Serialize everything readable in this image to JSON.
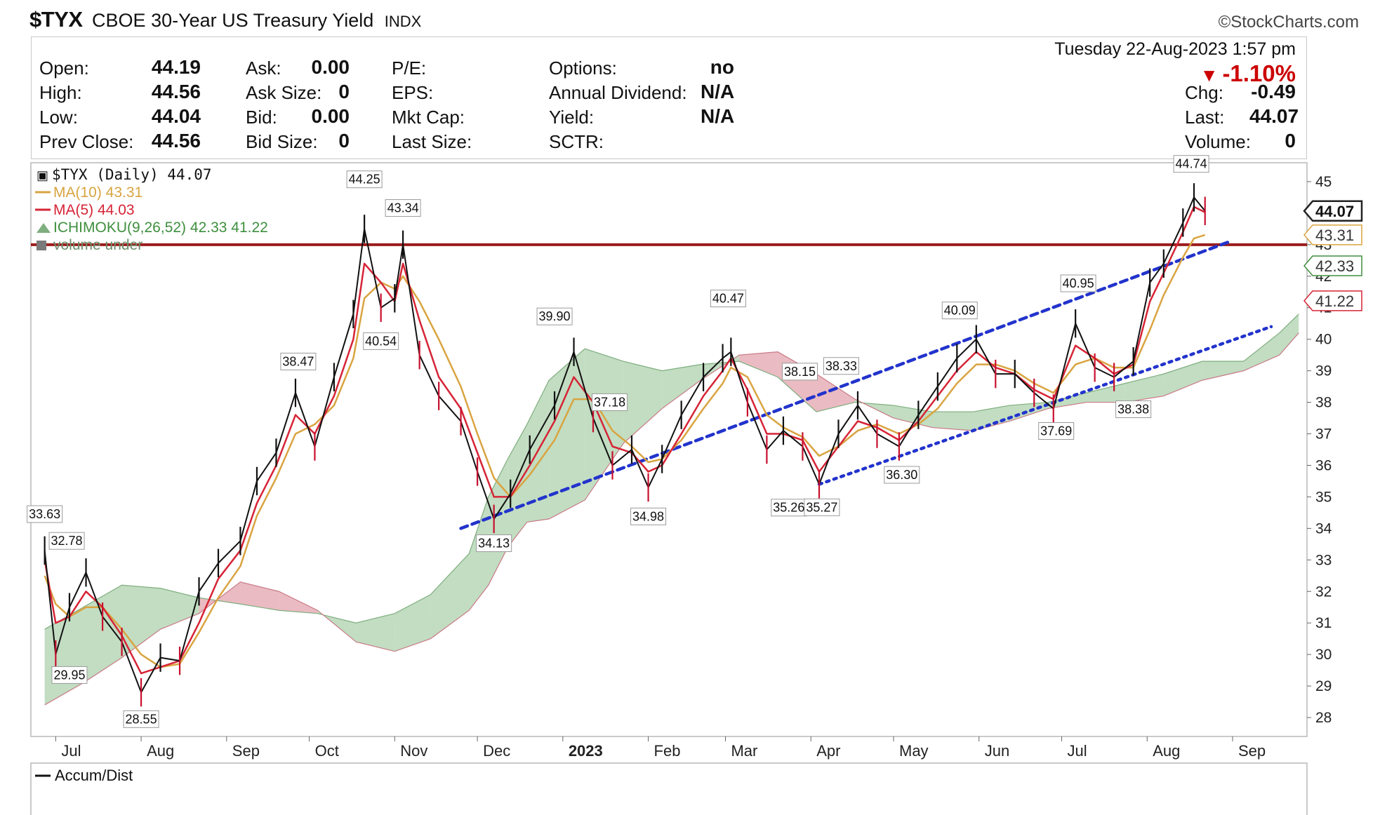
{
  "header": {
    "symbol": "$TYX",
    "name": "CBOE 30-Year US Treasury Yield",
    "exchange": "INDX",
    "brand": "©StockCharts.com"
  },
  "quote": {
    "date": "Tuesday  22-Aug-2023  1:57 pm",
    "change_pct": "-1.10%",
    "fields": [
      {
        "label": "Open:",
        "value": "44.19"
      },
      {
        "label": "High:",
        "value": "44.56"
      },
      {
        "label": "Low:",
        "value": "44.04"
      },
      {
        "label": "Prev Close:",
        "value": "44.56"
      },
      {
        "label": "Ask:",
        "value": "0.00"
      },
      {
        "label": "Ask Size:",
        "value": "0"
      },
      {
        "label": "Bid:",
        "value": "0.00"
      },
      {
        "label": "Bid Size:",
        "value": "0"
      },
      {
        "label": "P/E:",
        "value": ""
      },
      {
        "label": "EPS:",
        "value": ""
      },
      {
        "label": "Mkt Cap:",
        "value": ""
      },
      {
        "label": "Last Size:",
        "value": ""
      },
      {
        "label": "Options:",
        "value": "no"
      },
      {
        "label": "Annual Dividend:",
        "value": "N/A"
      },
      {
        "label": "Yield:",
        "value": "N/A"
      },
      {
        "label": "SCTR:",
        "value": ""
      },
      {
        "label": "Chg:",
        "value": "-0.49"
      },
      {
        "label": "Last:",
        "value": "44.07"
      },
      {
        "label": "Volume:",
        "value": "0"
      }
    ]
  },
  "chart_data": [
    {
      "type": "line",
      "title": "$TYX (Daily) 44.07",
      "legend": [
        {
          "label": "$TYX (Daily) 44.07",
          "color": "#111111"
        },
        {
          "label": "MA(10) 43.31",
          "color": "#d9a441"
        },
        {
          "label": "MA(5) 44.03",
          "color": "#d62436"
        },
        {
          "label": "ICHIMOKU(9,26,52) 42.33 41.22",
          "color": "#3f8f3f"
        },
        {
          "label": "volume under",
          "color": "#6a8f6a"
        }
      ],
      "legend_position": "top-left",
      "xlabels": [
        "Jul",
        "Aug",
        "Sep",
        "Oct",
        "Nov",
        "Dec",
        "2023",
        "Feb",
        "Mar",
        "Apr",
        "May",
        "Jun",
        "Jul",
        "Aug",
        "Sep"
      ],
      "yticks": [
        28,
        29,
        30,
        31,
        32,
        33,
        34,
        35,
        36,
        37,
        38,
        39,
        40,
        41,
        42,
        43,
        45
      ],
      "ylim": [
        27.4,
        45.6
      ],
      "y_axis_side": "right",
      "grid": false,
      "price_x": [
        "2022-06-27",
        "2022-07-01",
        "2022-07-06",
        "2022-07-12",
        "2022-07-18",
        "2022-07-25",
        "2022-08-01",
        "2022-08-08",
        "2022-08-15",
        "2022-08-22",
        "2022-08-29",
        "2022-09-06",
        "2022-09-12",
        "2022-09-19",
        "2022-09-26",
        "2022-10-03",
        "2022-10-10",
        "2022-10-17",
        "2022-10-21",
        "2022-10-27",
        "2022-11-01",
        "2022-11-04",
        "2022-11-10",
        "2022-11-17",
        "2022-11-25",
        "2022-12-01",
        "2022-12-07",
        "2022-12-13",
        "2022-12-20",
        "2022-12-29",
        "2023-01-05",
        "2023-01-12",
        "2023-01-19",
        "2023-01-26",
        "2023-02-01",
        "2023-02-06",
        "2023-02-13",
        "2023-02-21",
        "2023-02-28",
        "2023-03-03",
        "2023-03-09",
        "2023-03-16",
        "2023-03-22",
        "2023-03-29",
        "2023-04-04",
        "2023-04-11",
        "2023-04-18",
        "2023-04-25",
        "2023-05-03",
        "2023-05-10",
        "2023-05-17",
        "2023-05-24",
        "2023-05-31",
        "2023-06-07",
        "2023-06-14",
        "2023-06-21",
        "2023-06-28",
        "2023-07-06",
        "2023-07-13",
        "2023-07-20",
        "2023-07-27",
        "2023-08-02",
        "2023-08-07",
        "2023-08-14",
        "2023-08-18",
        "2023-08-22"
      ],
      "price_y": [
        33.3,
        30.0,
        31.5,
        32.6,
        31.2,
        30.4,
        28.8,
        29.9,
        29.8,
        32.0,
        32.9,
        33.6,
        35.5,
        36.4,
        38.3,
        36.6,
        38.8,
        40.8,
        43.5,
        41.0,
        41.3,
        43.0,
        39.5,
        38.2,
        37.4,
        35.8,
        34.3,
        35.1,
        36.5,
        37.9,
        39.6,
        37.5,
        36.0,
        36.5,
        35.3,
        36.2,
        37.6,
        38.8,
        39.4,
        39.6,
        38.0,
        36.5,
        37.1,
        36.6,
        35.4,
        37.0,
        37.9,
        37.0,
        36.6,
        37.6,
        38.5,
        39.4,
        40.0,
        38.9,
        38.9,
        38.3,
        37.8,
        40.5,
        39.1,
        38.8,
        39.3,
        41.8,
        42.4,
        43.7,
        44.5,
        44.07
      ],
      "ma10_y": [
        32.5,
        31.6,
        31.2,
        31.5,
        31.5,
        30.8,
        30.0,
        29.6,
        29.7,
        30.7,
        31.8,
        32.8,
        34.4,
        35.6,
        37.0,
        37.3,
        37.9,
        39.4,
        41.3,
        41.8,
        41.6,
        42.0,
        41.2,
        40.0,
        38.5,
        37.0,
        35.6,
        35.0,
        35.7,
        36.8,
        38.1,
        38.1,
        37.1,
        36.6,
        36.1,
        36.2,
        36.8,
        37.8,
        38.6,
        39.1,
        38.8,
        37.6,
        37.2,
        36.9,
        36.3,
        36.6,
        37.1,
        37.3,
        37.0,
        37.3,
        37.8,
        38.6,
        39.2,
        39.2,
        39.0,
        38.6,
        38.3,
        39.2,
        39.4,
        39.1,
        39.1,
        40.3,
        41.4,
        42.6,
        43.2,
        43.31
      ],
      "ma5_y": [
        33.0,
        31.0,
        31.2,
        32.0,
        31.5,
        30.6,
        29.4,
        29.6,
        29.8,
        31.0,
        32.4,
        33.3,
        34.8,
        36.0,
        37.6,
        37.0,
        38.2,
        40.0,
        42.4,
        41.8,
        41.2,
        42.4,
        40.6,
        38.8,
        37.8,
        36.4,
        35.0,
        35.0,
        36.0,
        37.4,
        38.8,
        38.0,
        36.6,
        36.4,
        35.8,
        36.0,
        37.0,
        38.2,
        39.0,
        39.4,
        38.4,
        37.0,
        37.0,
        36.8,
        35.8,
        36.6,
        37.4,
        37.2,
        36.8,
        37.4,
        38.2,
        39.0,
        39.6,
        39.1,
        38.9,
        38.4,
        38.1,
        39.8,
        39.4,
        38.9,
        39.2,
        41.2,
        42.1,
        43.4,
        44.2,
        44.03
      ],
      "cloud_x": [
        "2022-06-27",
        "2022-07-11",
        "2022-07-25",
        "2022-08-08",
        "2022-08-22",
        "2022-09-06",
        "2022-09-20",
        "2022-10-04",
        "2022-10-18",
        "2022-11-01",
        "2022-11-14",
        "2022-11-28",
        "2022-12-05",
        "2022-12-12",
        "2022-12-19",
        "2022-12-27",
        "2023-01-09",
        "2023-01-23",
        "2023-02-06",
        "2023-02-20",
        "2023-03-06",
        "2023-03-20",
        "2023-04-03",
        "2023-04-17",
        "2023-05-01",
        "2023-05-15",
        "2023-05-30",
        "2023-06-12",
        "2023-06-26",
        "2023-07-10",
        "2023-07-24",
        "2023-08-07",
        "2023-08-21",
        "2023-09-05",
        "2023-09-18",
        "2023-09-25"
      ],
      "cloud_a": [
        30.8,
        31.5,
        32.2,
        32.1,
        31.8,
        31.6,
        31.4,
        31.3,
        31.0,
        31.3,
        31.9,
        33.2,
        35.0,
        36.2,
        37.3,
        38.7,
        39.7,
        39.3,
        39.0,
        39.2,
        39.3,
        38.8,
        37.7,
        38.0,
        37.9,
        37.7,
        37.7,
        37.9,
        38.0,
        38.3,
        38.6,
        38.9,
        39.3,
        39.3,
        40.2,
        40.8
      ],
      "cloud_b": [
        28.4,
        29.1,
        29.9,
        30.8,
        31.3,
        32.3,
        32.0,
        31.4,
        30.4,
        30.1,
        30.5,
        31.4,
        32.2,
        33.4,
        34.2,
        34.3,
        34.9,
        36.7,
        37.8,
        38.7,
        39.5,
        39.6,
        38.9,
        38.1,
        37.5,
        37.2,
        37.1,
        37.4,
        37.8,
        38.0,
        38.0,
        38.2,
        38.7,
        39.0,
        39.5,
        40.2
      ],
      "peaks": [
        {
          "x": "2022-06-27",
          "y": 33.63,
          "label": "33.63"
        },
        {
          "x": "2022-07-05",
          "y": 32.78,
          "label": "32.78"
        },
        {
          "x": "2022-09-27",
          "y": 38.47,
          "label": "38.47"
        },
        {
          "x": "2022-10-21",
          "y": 44.25,
          "label": "44.25"
        },
        {
          "x": "2022-11-04",
          "y": 43.34,
          "label": "43.34"
        },
        {
          "x": "2022-12-29",
          "y": 39.9,
          "label": "39.90"
        },
        {
          "x": "2023-01-18",
          "y": 37.18,
          "label": "37.18"
        },
        {
          "x": "2023-03-02",
          "y": 40.47,
          "label": "40.47"
        },
        {
          "x": "2023-03-28",
          "y": 38.15,
          "label": "38.15"
        },
        {
          "x": "2023-04-12",
          "y": 38.33,
          "label": "38.33"
        },
        {
          "x": "2023-05-25",
          "y": 40.09,
          "label": "40.09"
        },
        {
          "x": "2023-07-07",
          "y": 40.95,
          "label": "40.95"
        },
        {
          "x": "2023-08-17",
          "y": 44.74,
          "label": "44.74"
        }
      ],
      "troughs": [
        {
          "x": "2022-07-06",
          "y": 29.95,
          "label": "29.95"
        },
        {
          "x": "2022-08-01",
          "y": 28.55,
          "label": "28.55"
        },
        {
          "x": "2022-10-27",
          "y": 40.54,
          "label": "40.54"
        },
        {
          "x": "2022-12-07",
          "y": 34.13,
          "label": "34.13"
        },
        {
          "x": "2023-02-01",
          "y": 34.98,
          "label": "34.98"
        },
        {
          "x": "2023-03-24",
          "y": 35.26,
          "label": "35.26"
        },
        {
          "x": "2023-04-05",
          "y": 35.27,
          "label": "35.27"
        },
        {
          "x": "2023-05-04",
          "y": 36.3,
          "label": "36.30"
        },
        {
          "x": "2023-06-29",
          "y": 37.69,
          "label": "37.69"
        },
        {
          "x": "2023-07-27",
          "y": 38.38,
          "label": "38.38"
        }
      ],
      "resistance": {
        "y": 43.0,
        "color": "#9b1c1c"
      },
      "trendlines": [
        {
          "x1": "2022-11-25",
          "y1": 34.0,
          "x2": "2023-08-31",
          "y2": 43.1,
          "style": "dashed",
          "color": "#2233cc"
        },
        {
          "x1": "2023-04-04",
          "y1": 35.4,
          "x2": "2023-09-15",
          "y2": 40.4,
          "style": "dotted",
          "color": "#2233cc"
        }
      ],
      "axis_tags": [
        {
          "value": 44.07,
          "label": "44.07",
          "color": "#222222",
          "bold": true
        },
        {
          "value": 43.31,
          "label": "43.31",
          "color": "#d9a441",
          "bold": false
        },
        {
          "value": 42.33,
          "label": "42.33",
          "color": "#3f8f3f",
          "bold": false
        },
        {
          "value": 41.22,
          "label": "41.22",
          "color": "#d62436",
          "bold": false
        }
      ]
    },
    {
      "type": "line",
      "title": "Accum/Dist",
      "legend": [
        {
          "label": "Accum/Dist",
          "color": "#111111"
        }
      ],
      "values": []
    }
  ],
  "colors": {
    "price": "#111111",
    "ma10": "#d9a441",
    "ma5": "#d62436",
    "cloud_up": "#8fc18f",
    "cloud_down": "#d9838f",
    "trend": "#2233cc"
  }
}
